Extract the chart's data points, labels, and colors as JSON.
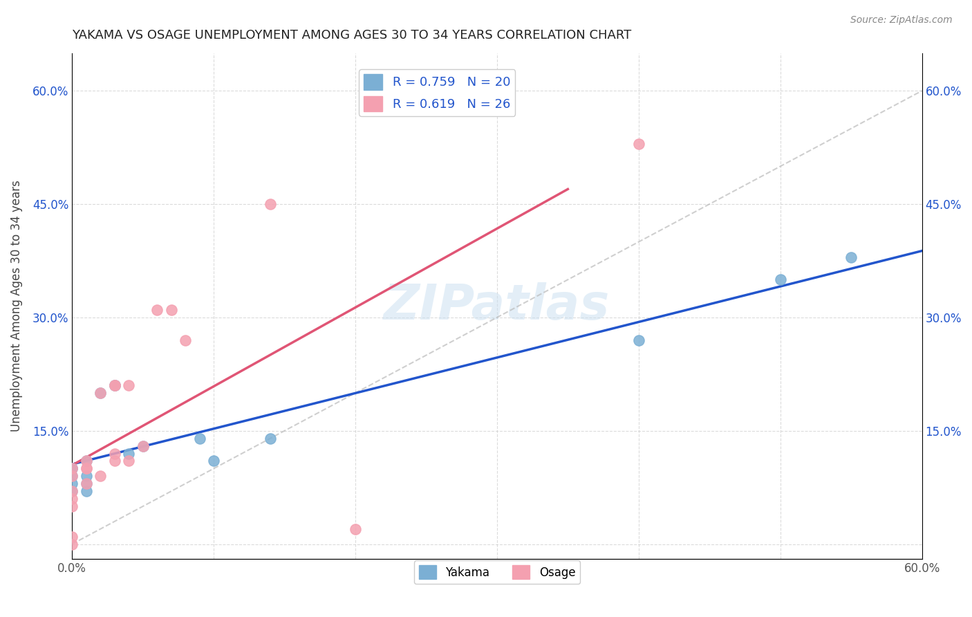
{
  "title": "YAKAMA VS OSAGE UNEMPLOYMENT AMONG AGES 30 TO 34 YEARS CORRELATION CHART",
  "source": "Source: ZipAtlas.com",
  "xlabel": "",
  "ylabel": "Unemployment Among Ages 30 to 34 years",
  "xlim": [
    0.0,
    0.6
  ],
  "ylim": [
    -0.02,
    0.65
  ],
  "xticks": [
    0.0,
    0.1,
    0.2,
    0.3,
    0.4,
    0.5,
    0.6
  ],
  "xticklabels": [
    "0.0%",
    "",
    "",
    "",
    "",
    "",
    "60.0%"
  ],
  "yticks": [
    0.0,
    0.15,
    0.3,
    0.45,
    0.6
  ],
  "yticklabels": [
    "",
    "15.0%",
    "30.0%",
    "45.0%",
    "60.0%"
  ],
  "yakama_color": "#7bafd4",
  "osage_color": "#f4a0b0",
  "yakama_line_color": "#2255cc",
  "osage_line_color": "#e05575",
  "R_yakama": 0.759,
  "N_yakama": 20,
  "R_osage": 0.619,
  "N_osage": 26,
  "yakama_x": [
    0.0,
    0.0,
    0.0,
    0.0,
    0.0,
    0.01,
    0.01,
    0.01,
    0.01,
    0.02,
    0.03,
    0.03,
    0.04,
    0.05,
    0.09,
    0.1,
    0.14,
    0.4,
    0.5,
    0.55
  ],
  "yakama_y": [
    0.1,
    0.1,
    0.09,
    0.08,
    0.07,
    0.11,
    0.09,
    0.08,
    0.07,
    0.2,
    0.21,
    0.21,
    0.12,
    0.13,
    0.14,
    0.11,
    0.14,
    0.27,
    0.35,
    0.38
  ],
  "osage_x": [
    0.0,
    0.0,
    0.0,
    0.0,
    0.0,
    0.0,
    0.0,
    0.01,
    0.01,
    0.01,
    0.01,
    0.02,
    0.02,
    0.03,
    0.03,
    0.03,
    0.03,
    0.04,
    0.04,
    0.05,
    0.06,
    0.07,
    0.08,
    0.14,
    0.2,
    0.4
  ],
  "osage_y": [
    0.0,
    0.01,
    0.05,
    0.06,
    0.07,
    0.09,
    0.1,
    0.08,
    0.1,
    0.1,
    0.11,
    0.09,
    0.2,
    0.11,
    0.12,
    0.21,
    0.21,
    0.11,
    0.21,
    0.13,
    0.31,
    0.31,
    0.27,
    0.45,
    0.02,
    0.53
  ],
  "watermark": "ZIPatlas"
}
